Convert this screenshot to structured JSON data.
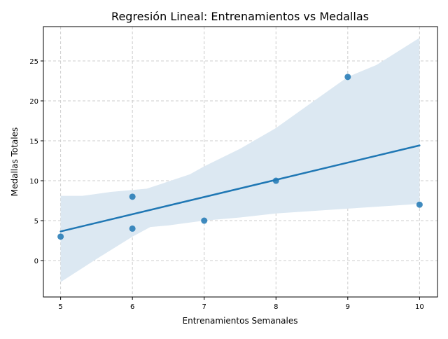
{
  "chart_data": {
    "type": "scatter",
    "title": "Regresión Lineal: Entrenamientos vs Medallas",
    "xlabel": "Entrenamientos Semanales",
    "ylabel": "Medallas Totales",
    "xlim": [
      4.76,
      10.25
    ],
    "ylim": [
      -4.56,
      29.3
    ],
    "xticks": [
      5,
      6,
      7,
      8,
      9,
      10
    ],
    "yticks": [
      0,
      5,
      10,
      15,
      20,
      25
    ],
    "grid": true,
    "points": {
      "x": [
        5,
        6,
        6,
        7,
        8,
        9,
        10
      ],
      "y": [
        3,
        8,
        4,
        5,
        10,
        23,
        7
      ],
      "color": "#1f77b4"
    },
    "regression_line": {
      "x": [
        5,
        10
      ],
      "y": [
        3.65,
        14.42
      ],
      "color": "#1f77b4"
    },
    "confidence_band": {
      "upper_x": [
        5,
        5.3,
        5.7,
        6.2,
        6.4,
        6.8,
        7,
        7.5,
        8,
        8.5,
        9,
        9.4,
        10
      ],
      "upper_y": [
        8.1,
        8.1,
        8.6,
        9.0,
        9.6,
        10.8,
        11.8,
        14.0,
        16.6,
        19.8,
        23.0,
        24.5,
        27.9
      ],
      "lower_x": [
        5,
        5.5,
        6,
        6.25,
        6.5,
        7,
        7.5,
        8,
        9,
        10
      ],
      "lower_y": [
        -2.7,
        0.2,
        3.0,
        4.2,
        4.4,
        5.0,
        5.4,
        5.9,
        6.5,
        7.1
      ],
      "color": "#dce8f2"
    }
  }
}
